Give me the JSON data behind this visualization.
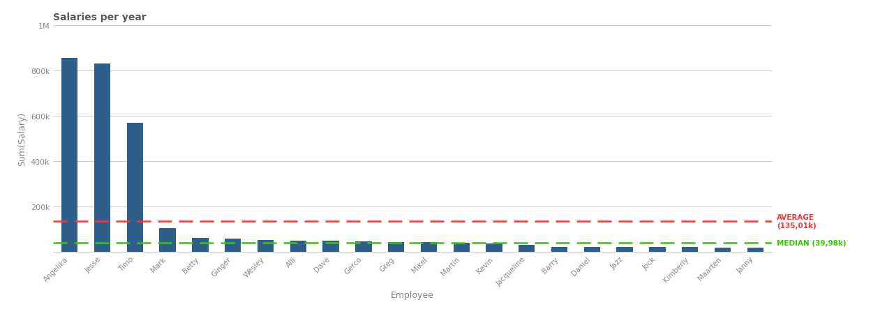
{
  "title": "Salaries per year",
  "xlabel": "Employee",
  "ylabel": "Sum(Salary)",
  "categories": [
    "Angelika",
    "Jesse",
    "Timo",
    "Mark",
    "Betty",
    "Ginger",
    "Wesley",
    "Alli",
    "Dave",
    "Gerco",
    "Greg",
    "Mikel",
    "Martin",
    "Kevin",
    "Jacqueline",
    "Barry",
    "Daniel",
    "Jazz",
    "Jock",
    "Kimberly",
    "Maarten",
    "Janny"
  ],
  "values": [
    855000,
    830000,
    570000,
    105000,
    60000,
    58000,
    52000,
    50000,
    48000,
    46000,
    44000,
    42000,
    40000,
    36000,
    30000,
    22000,
    20000,
    20000,
    20000,
    20000,
    19000,
    18000
  ],
  "bar_color": "#2e5f8a",
  "average": 135010,
  "median": 39980,
  "average_label": "AVERAGE\n(135,01k)",
  "median_label": "MEDIAN (39,98k)",
  "avg_color": "#ff3333",
  "median_color": "#33cc00",
  "ylim": [
    0,
    1000000
  ],
  "background_color": "#ffffff",
  "title_color": "#5a5a5a",
  "axis_label_color": "#888888",
  "tick_label_color": "#888888",
  "grid_color": "#cccccc",
  "yticks": [
    0,
    200000,
    400000,
    600000,
    800000,
    1000000
  ],
  "ytick_labels": [
    "",
    "200k",
    "400k",
    "600k",
    "800k",
    "1M"
  ]
}
